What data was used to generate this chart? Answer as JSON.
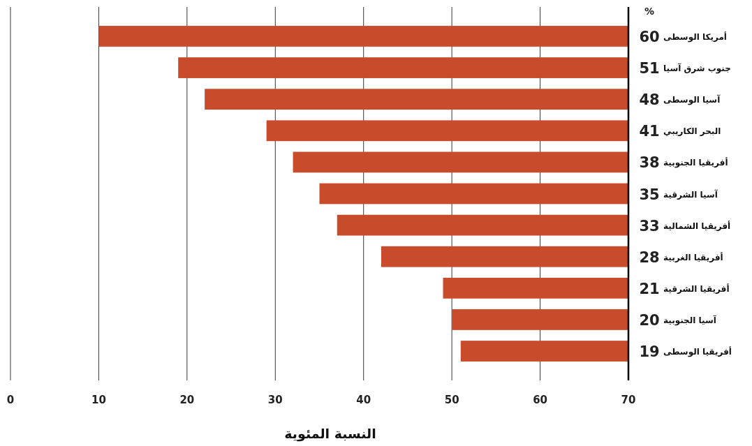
{
  "chart_data": {
    "type": "bar",
    "orientation": "horizontal",
    "categories": [
      "أمريكا الوسطى",
      "جنوب شرق آسيا",
      "آسيا الوسطى",
      "البحر الكاريبي",
      "أفريقيا الجنوبية",
      "آسيا الشرقية",
      "أفريقيا الشمالية",
      "أفريقيا الغربية",
      "أفريقيا الشرقية",
      "آسيا الجنوبية",
      "أفريقيا الوسطى"
    ],
    "values": [
      60,
      51,
      48,
      41,
      38,
      35,
      33,
      28,
      21,
      20,
      19
    ],
    "base": [
      10,
      19,
      22,
      29,
      32,
      35,
      37,
      42,
      49,
      50,
      51
    ],
    "color": "#c84b2c",
    "data_labels": true,
    "xlim": [
      0,
      70
    ],
    "xticks": [
      0,
      10,
      20,
      30,
      40,
      50,
      60,
      70
    ],
    "grid": "x",
    "xlabel": "النسبة المئوية",
    "annotations": [
      "%"
    ]
  }
}
